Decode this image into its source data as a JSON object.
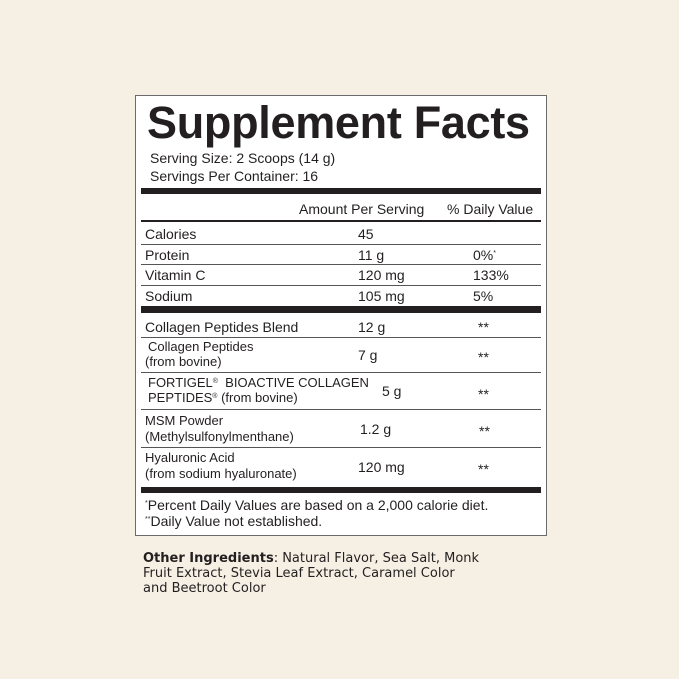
{
  "title": "Supplement Facts",
  "serving_size": "Serving Size: 2 Scoops (14 g)",
  "servings_per_container": "Servings Per Container: 16",
  "header": {
    "amount": "Amount Per Serving",
    "dv": "% Daily Value"
  },
  "nutrients": [
    {
      "name": "Calories",
      "amount": "45",
      "dv": ""
    },
    {
      "name": "Protein",
      "amount": "11 g",
      "dv": "0%",
      "dv_mark": "*"
    },
    {
      "name": "Vitamin C",
      "amount": "120 mg",
      "dv": "133%"
    },
    {
      "name": "Sodium",
      "amount": "105 mg",
      "dv": "5%"
    }
  ],
  "blend": [
    {
      "name": "Collagen Peptides Blend",
      "amount": "12 g",
      "dv": "**"
    },
    {
      "name": "Collagen Peptides",
      "sub": "(from bovine)",
      "amount": "7 g",
      "dv": "**"
    },
    {
      "name_a": "FORTIGEL",
      "reg": "®",
      "name_b": "  BIOACTIVE COLLAGEN",
      "sub_a": "PEPTIDES",
      "sub_b": " (from bovine)",
      "amount": "5 g",
      "dv": "**"
    },
    {
      "name": "MSM Powder",
      "sub": "(Methylsulfonylmenthane)",
      "amount": "1.2 g",
      "dv": "**"
    },
    {
      "name": "Hyaluronic Acid",
      "sub": "(from sodium hyaluronate)",
      "amount": "120 mg",
      "dv": "**"
    }
  ],
  "footnotes": {
    "mark1": "*",
    "line1": "Percent Daily Values are based on a 2,000 calorie diet.",
    "mark2": "**",
    "line2": "Daily Value not established."
  },
  "other_ingredients": {
    "label": "Other Ingredients",
    "text": ": Natural Flavor, Sea Salt, Monk Fruit Extract, Stevia Leaf Extract, Caramel Color and Beetroot Color"
  }
}
